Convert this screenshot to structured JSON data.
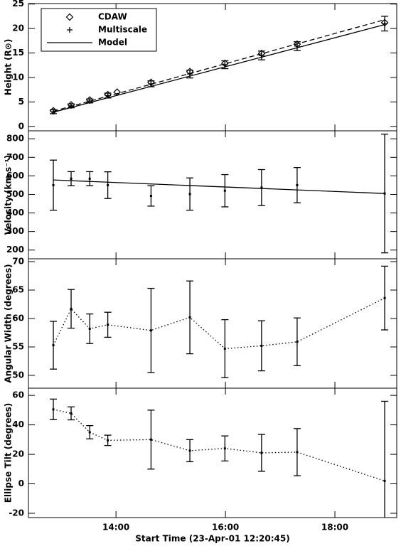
{
  "chart_data": [
    {
      "type": "line",
      "ylabel": "Height (R⊙)",
      "xlim": [
        12.4,
        19.13
      ],
      "ylim": [
        -0.9,
        25.1
      ],
      "yticks": [
        0,
        5,
        10,
        15,
        20,
        25
      ],
      "legend": "upper left",
      "series": [
        {
          "name": "CDAW",
          "color": "#000000",
          "marker": "diamond",
          "line": "none",
          "x": [
            12.855,
            13.18,
            13.52,
            13.85,
            14.02,
            14.64,
            15.35,
            15.99,
            16.66,
            17.31,
            18.91
          ],
          "values": [
            3.2,
            4.4,
            5.4,
            6.5,
            7.0,
            9.0,
            11.2,
            12.9,
            14.9,
            16.8,
            21.2
          ]
        },
        {
          "name": "Multiscale",
          "color": "#000000",
          "marker": "plus",
          "line": "none",
          "x": [
            12.855,
            13.18,
            13.52,
            13.85,
            14.64,
            15.35,
            15.99,
            16.66,
            17.31,
            18.91
          ],
          "values": [
            3.0,
            4.2,
            5.2,
            6.3,
            8.7,
            10.7,
            12.6,
            14.5,
            16.4,
            21.0
          ],
          "errors": [
            0.4,
            0.4,
            0.4,
            0.5,
            0.6,
            0.8,
            0.8,
            0.9,
            0.9,
            1.5
          ]
        },
        {
          "name": "Model",
          "color": "#000000",
          "marker": "none",
          "line": "solid",
          "x": [
            12.855,
            18.91
          ],
          "values": [
            2.9,
            20.8
          ]
        },
        {
          "color": "#000000",
          "marker": "none",
          "line": "dashed",
          "x": [
            12.855,
            18.91
          ],
          "values": [
            3.1,
            21.8
          ]
        }
      ]
    },
    {
      "type": "line",
      "ylabel": "Velocity (km s⁻¹)",
      "xlim": [
        12.4,
        19.13
      ],
      "ylim": [
        153,
        843
      ],
      "yticks": [
        200,
        300,
        400,
        500,
        600,
        700,
        800
      ],
      "series": [
        {
          "color": "#000000",
          "marker": "dot",
          "line": "none",
          "x": [
            12.855,
            13.18,
            13.52,
            13.85,
            14.64,
            15.35,
            15.99,
            16.66,
            17.31,
            18.91
          ],
          "values": [
            550,
            585,
            585,
            550,
            492,
            502,
            520,
            537,
            550,
            505
          ],
          "errors": [
            135,
            38,
            38,
            72,
            55,
            87,
            87,
            97,
            95,
            320
          ]
        },
        {
          "color": "#000000",
          "marker": "none",
          "line": "solid",
          "x": [
            12.855,
            18.91
          ],
          "values": [
            578,
            505
          ]
        }
      ]
    },
    {
      "type": "line",
      "ylabel": "Angular Width (degrees)",
      "xlim": [
        12.4,
        19.13
      ],
      "ylim": [
        47.75,
        70.5
      ],
      "yticks": [
        50,
        55,
        60,
        65,
        70
      ],
      "series": [
        {
          "color": "#000000",
          "marker": "dot",
          "line": "dotted",
          "x": [
            12.855,
            13.18,
            13.52,
            13.85,
            14.64,
            15.35,
            15.99,
            16.66,
            17.31,
            18.91
          ],
          "values": [
            55.3,
            61.7,
            58.2,
            58.9,
            57.9,
            60.2,
            54.7,
            55.2,
            55.9,
            63.6
          ],
          "errors": [
            4.2,
            3.4,
            2.6,
            2.2,
            7.4,
            6.4,
            5.1,
            4.4,
            4.2,
            5.6
          ]
        }
      ]
    },
    {
      "type": "line",
      "ylabel": "Ellipse Tilt (degrees)",
      "xlabel": "Start Time (23-Apr-01 12:20:45)",
      "xlim": [
        12.4,
        19.13
      ],
      "ylim": [
        -22.9,
        64.9
      ],
      "yticks": [
        -20,
        0,
        20,
        40,
        60
      ],
      "xticks": [
        {
          "value": 14,
          "label": "14:00"
        },
        {
          "value": 16,
          "label": "16:00"
        },
        {
          "value": 18,
          "label": "18:00"
        }
      ],
      "series": [
        {
          "color": "#000000",
          "marker": "dot",
          "line": "dotted",
          "x": [
            12.855,
            13.18,
            13.52,
            13.85,
            14.64,
            15.35,
            15.99,
            16.66,
            17.31,
            18.91
          ],
          "values": [
            50.5,
            47.8,
            35,
            29.5,
            30,
            22.5,
            24,
            21,
            21.5,
            2
          ],
          "errors": [
            7,
            4.4,
            4.5,
            3.5,
            20,
            7.5,
            8.5,
            12.5,
            16,
            54
          ]
        }
      ]
    }
  ]
}
